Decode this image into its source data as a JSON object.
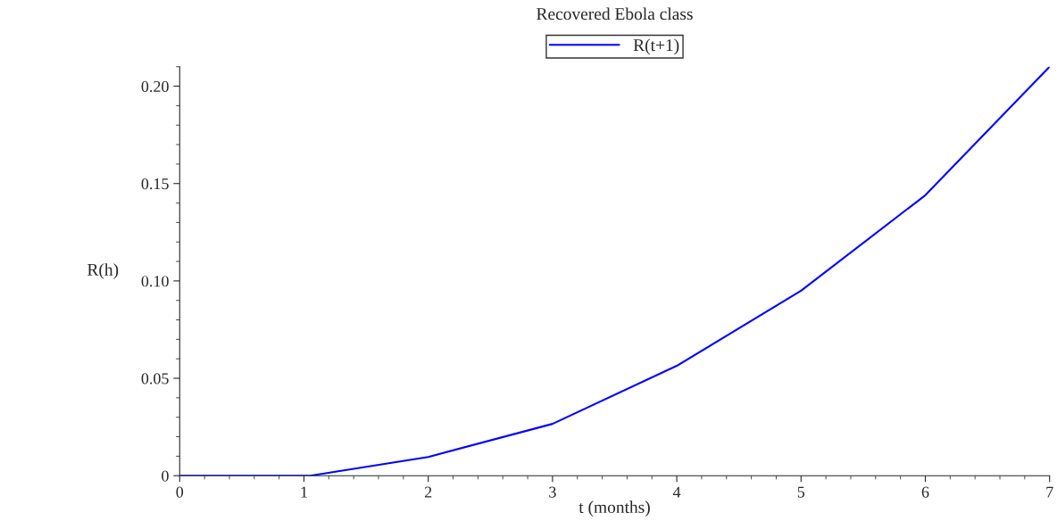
{
  "chart_data": {
    "type": "line",
    "title": "Recovered Ebola class",
    "xlabel": "t (months)",
    "ylabel": "R(h)",
    "x": [
      0,
      1,
      1.05,
      2,
      3,
      4,
      5,
      6,
      7
    ],
    "series": [
      {
        "name": "R(t+1)",
        "color": "#0000ff",
        "values": [
          0,
          0,
          0,
          0.0096,
          0.0266,
          0.0564,
          0.095,
          0.144,
          0.21
        ]
      }
    ],
    "xlim": [
      0,
      7
    ],
    "ylim": [
      0,
      0.21
    ],
    "xticks": [
      0,
      1,
      2,
      3,
      4,
      5,
      6,
      7
    ],
    "yticks": [
      0,
      0.05,
      {
        "value": 0.1,
        "label": "0.10"
      },
      0.15,
      {
        "value": 0.2,
        "label": "0.20"
      }
    ],
    "legend": "top",
    "grid": false,
    "marker": "none",
    "line_style": "solid"
  }
}
